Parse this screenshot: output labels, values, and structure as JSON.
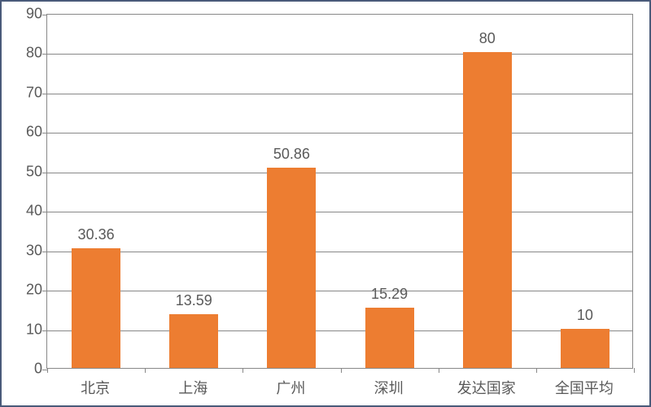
{
  "chart": {
    "type": "bar",
    "categories": [
      "北京",
      "上海",
      "广州",
      "深圳",
      "发达国家",
      "全国平均"
    ],
    "values": [
      30.36,
      13.59,
      50.86,
      15.29,
      80,
      10
    ],
    "value_labels": [
      "30.36",
      "13.59",
      "50.86",
      "15.29",
      "80",
      "10"
    ],
    "bar_color": "#ed7d31",
    "ylim": [
      0,
      90
    ],
    "ytick_step": 10,
    "yticks": [
      0,
      10,
      20,
      30,
      40,
      50,
      60,
      70,
      80,
      90
    ],
    "background_color": "#ffffff",
    "grid_color": "#888888",
    "border_color": "#4a5a7a",
    "bar_width_ratio": 0.5,
    "label_fontsize": 18,
    "tick_fontsize": 18,
    "text_color": "#595959"
  }
}
